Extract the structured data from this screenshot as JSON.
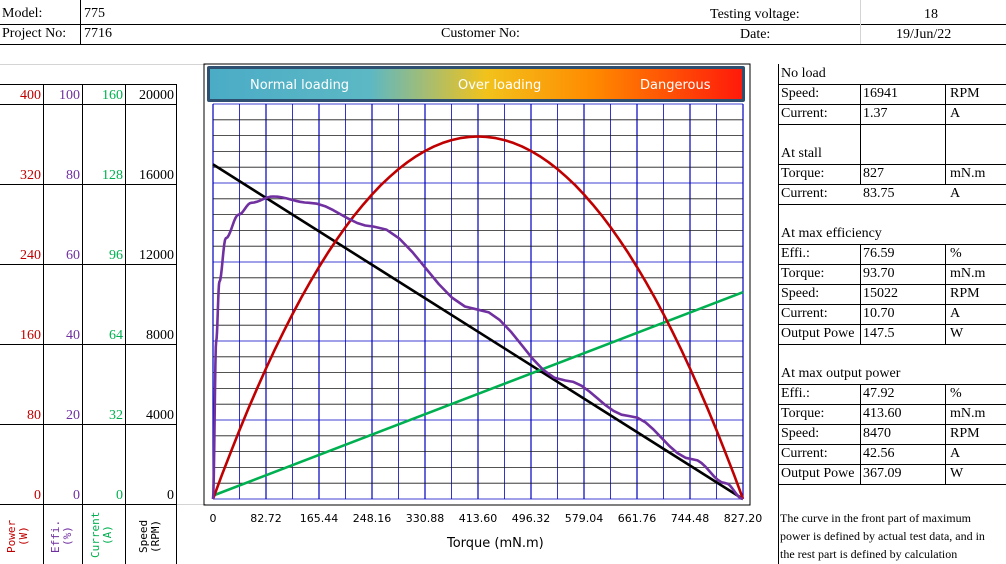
{
  "header": {
    "model_label": "Model:",
    "model_value": "775",
    "project_label": "Project No:",
    "project_value": "7716",
    "customer_label": "Customer No:",
    "voltage_label": "Testing voltage:",
    "voltage_value": "18",
    "date_label": "Date:",
    "date_value": "19/Jun/22"
  },
  "banner": {
    "normal": "Normal loading",
    "over": "Over loading",
    "danger": "Dangerous"
  },
  "axes_left": {
    "power_ticks": [
      "400",
      "320",
      "240",
      "160",
      "80",
      "0"
    ],
    "effi_ticks": [
      "100",
      "80",
      "60",
      "40",
      "20",
      "0"
    ],
    "current_ticks": [
      "160",
      "128",
      "96",
      "64",
      "32",
      "0"
    ],
    "speed_ticks": [
      "20000",
      "16000",
      "12000",
      "8000",
      "4000",
      "0"
    ],
    "power_label": "Power (W)",
    "effi_label": "Effi. (%)",
    "current_label": "Current (A)",
    "speed_label": "Speed (RPM)"
  },
  "colors": {
    "power": "#c00000",
    "effi": "#7030a0",
    "current": "#00b050",
    "speed": "#000000",
    "grid": "#0000c0"
  },
  "params": {
    "no_load": {
      "title": "No load",
      "rows": [
        [
          "Speed:",
          "16941",
          "RPM"
        ],
        [
          "Current:",
          "1.37",
          "A"
        ]
      ]
    },
    "stall": {
      "title": "At stall",
      "rows": [
        [
          "Torque:",
          "827",
          "mN.m"
        ],
        [
          "Current:",
          "83.75",
          "A"
        ]
      ]
    },
    "max_eff": {
      "title": "At max efficiency",
      "rows": [
        [
          "Effi.:",
          "76.59",
          "%"
        ],
        [
          "Torque:",
          "93.70",
          "mN.m"
        ],
        [
          "Speed:",
          "15022",
          "RPM"
        ],
        [
          "Current:",
          "10.70",
          "A"
        ],
        [
          "Output Powe",
          "147.5",
          "W"
        ]
      ]
    },
    "max_power": {
      "title": "At max output power",
      "rows": [
        [
          "Effi.:",
          "47.92",
          "%"
        ],
        [
          "Torque:",
          "413.60",
          "mN.m"
        ],
        [
          "Speed:",
          "8470",
          "RPM"
        ],
        [
          "Current:",
          "42.56",
          "A"
        ],
        [
          "Output Powe",
          "367.09",
          "W"
        ]
      ]
    },
    "note": "The curve in the front part of maximum power is defined by actual test data, and in the rest part is defined by calculation"
  },
  "chart_data": {
    "type": "line",
    "xlabel": "Torque (mN.m)",
    "x_ticks": [
      "0",
      "82.72",
      "165.44",
      "248.16",
      "330.88",
      "413.60",
      "496.32",
      "579.04",
      "661.76",
      "744.48",
      "827.20"
    ],
    "xlim": [
      0,
      827.2
    ],
    "series": [
      {
        "name": "Speed (RPM)",
        "color": "#000000",
        "ylim": [
          0,
          20000
        ],
        "x": [
          0,
          827.2
        ],
        "values": [
          16941,
          0
        ]
      },
      {
        "name": "Current (A)",
        "color": "#00b050",
        "ylim": [
          0,
          160
        ],
        "x": [
          0,
          827.2
        ],
        "values": [
          1.37,
          83.75
        ]
      },
      {
        "name": "Power (W)",
        "color": "#c00000",
        "ylim": [
          0,
          400
        ],
        "x": [
          0,
          82.72,
          165.44,
          248.16,
          330.88,
          413.6,
          496.32,
          579.04,
          661.76,
          744.48,
          827.2
        ],
        "values": [
          0,
          132,
          235,
          308,
          352,
          367,
          352,
          308,
          235,
          132,
          0
        ]
      },
      {
        "name": "Effi. (%)",
        "color": "#7030a0",
        "ylim": [
          0,
          100
        ],
        "x": [
          0,
          5,
          10,
          20,
          40,
          60,
          93.7,
          150,
          250,
          413.6,
          550,
          650,
          750,
          800,
          827.2
        ],
        "values": [
          0,
          40,
          55,
          66,
          72,
          75,
          76.59,
          75,
          69,
          47.92,
          30,
          21,
          10,
          4,
          0
        ]
      }
    ]
  }
}
